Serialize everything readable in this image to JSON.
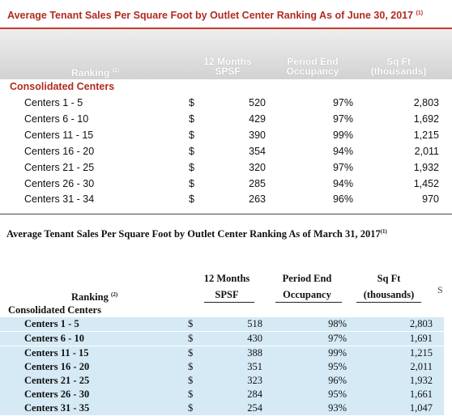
{
  "table_june": {
    "title": "Average Tenant Sales Per Square Foot by Outlet Center Ranking As of June 30, 2017",
    "title_note": "(1)",
    "headers": {
      "ranking": "Ranking",
      "ranking_note": "(2)",
      "spsf_line1": "12 Months",
      "spsf_line2": "SPSF",
      "occ_line1": "Period End",
      "occ_line2": "Occupancy",
      "sqft_line1": "Sq Ft",
      "sqft_line2": "(thousands)"
    },
    "section": "Consolidated Centers",
    "rows": [
      {
        "name": "Centers  1 - 5",
        "dollar": "$",
        "spsf": "520",
        "occupancy": "97%",
        "sqft": "2,803"
      },
      {
        "name": "Centers  6 - 10",
        "dollar": "$",
        "spsf": "429",
        "occupancy": "97%",
        "sqft": "1,692"
      },
      {
        "name": "Centers  11 - 15",
        "dollar": "$",
        "spsf": "390",
        "occupancy": "99%",
        "sqft": "1,215"
      },
      {
        "name": "Centers  16 - 20",
        "dollar": "$",
        "spsf": "354",
        "occupancy": "94%",
        "sqft": "2,011"
      },
      {
        "name": "Centers  21 - 25",
        "dollar": "$",
        "spsf": "320",
        "occupancy": "97%",
        "sqft": "1,932"
      },
      {
        "name": "Centers  26 - 30",
        "dollar": "$",
        "spsf": "285",
        "occupancy": "94%",
        "sqft": "1,452"
      },
      {
        "name": "Centers  31 - 34",
        "dollar": "$",
        "spsf": "263",
        "occupancy": "96%",
        "sqft": "970"
      }
    ]
  },
  "table_march": {
    "title": "Average Tenant Sales Per Square Foot by Outlet Center Ranking As of March 31, 2017",
    "title_note": "(1)",
    "headers": {
      "ranking": "Ranking",
      "ranking_note": "(2)",
      "spsf_line1": "12 Months",
      "spsf_line2": "SPSF",
      "occ_line1": "Period End",
      "occ_line2": "Occupancy",
      "sqft_line1": "Sq Ft",
      "sqft_line2": "(thousands)"
    },
    "section": "Consolidated Centers",
    "rows": [
      {
        "name": "Centers  1 - 5",
        "dollar": "$",
        "spsf": "518",
        "occupancy": "98%",
        "sqft": "2,803"
      },
      {
        "name": "Centers  6 - 10",
        "dollar": "$",
        "spsf": "430",
        "occupancy": "97%",
        "sqft": "1,691"
      },
      {
        "name": "Centers  11 - 15",
        "dollar": "$",
        "spsf": "388",
        "occupancy": "99%",
        "sqft": "1,215"
      },
      {
        "name": "Centers  16 - 20",
        "dollar": "$",
        "spsf": "351",
        "occupancy": "95%",
        "sqft": "2,011"
      },
      {
        "name": "Centers  21 - 25",
        "dollar": "$",
        "spsf": "323",
        "occupancy": "96%",
        "sqft": "1,932"
      },
      {
        "name": "Centers  26 - 30",
        "dollar": "$",
        "spsf": "284",
        "occupancy": "95%",
        "sqft": "1,661"
      },
      {
        "name": "Centers  31 - 35",
        "dollar": "$",
        "spsf": "254",
        "occupancy": "93%",
        "sqft": "1,047"
      }
    ],
    "edge_mark": "S"
  },
  "colors": {
    "title_red": "#b12b22",
    "row_blue": "#d5eaf5",
    "header_gray": "#d2d2d2"
  }
}
